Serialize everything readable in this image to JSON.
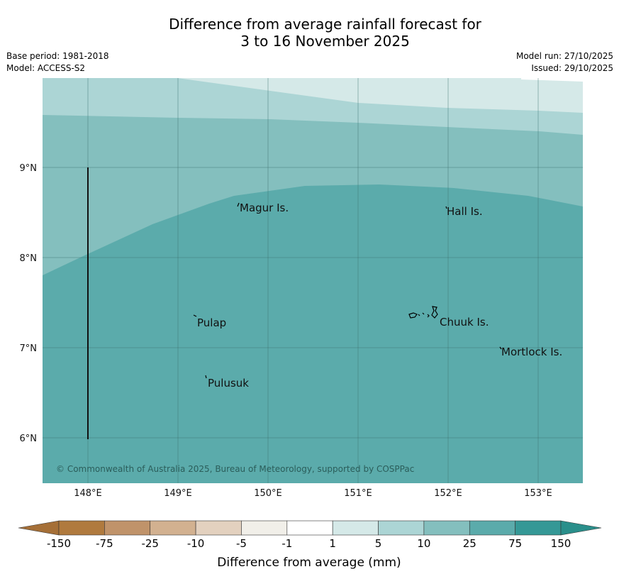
{
  "title": {
    "line1": "Difference from average rainfall forecast for",
    "line2": "3 to 16 November 2025"
  },
  "meta": {
    "base_period": "Base period: 1981-2018",
    "model": "Model: ACCESS-S2",
    "model_run": "Model run: 27/10/2025",
    "issued": "Issued: 29/10/2025"
  },
  "map": {
    "lon_ticks": [
      "148°E",
      "149°E",
      "150°E",
      "151°E",
      "152°E",
      "153°E"
    ],
    "lat_ticks": [
      "9°N",
      "8°N",
      "7°N",
      "6°N"
    ],
    "places": [
      "Magur Is.",
      "Hall Is.",
      "Pulap",
      "Chuuk Is.",
      "Mortlock Is.",
      "Pulusuk"
    ],
    "copyright": "© Commonwealth of Australia 2025, Bureau of Meteorology, supported by COSPPac"
  },
  "legend": {
    "title": "Difference from average (mm)",
    "tick_labels": [
      "-150",
      "-75",
      "-25",
      "-10",
      "-5",
      "-1",
      "1",
      "5",
      "10",
      "25",
      "75",
      "150"
    ],
    "colors": [
      "#b07a3e",
      "#c0936a",
      "#d2b190",
      "#e3d1bf",
      "#f1efe9",
      "#ffffff",
      "#d5e9e8",
      "#acd5d5",
      "#84bfbe",
      "#5babab",
      "#359896"
    ],
    "under_color": "#a56f37",
    "over_color": "#2a8f8b"
  }
}
